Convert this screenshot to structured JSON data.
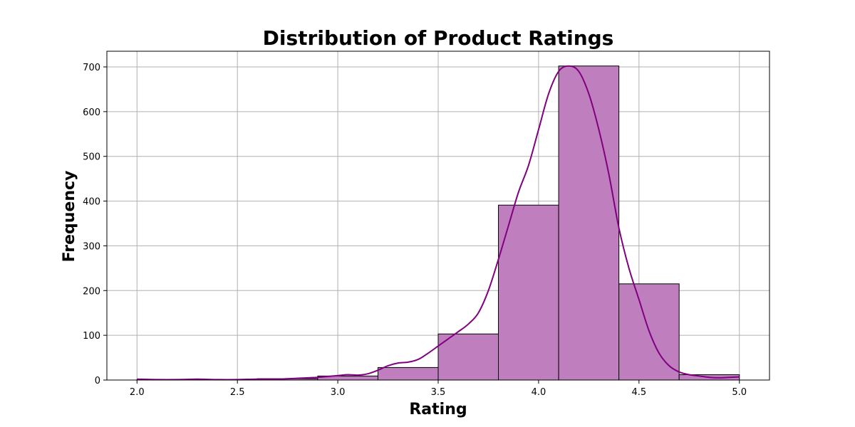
{
  "chart_data": {
    "type": "bar",
    "title": "Distribution of Product Ratings",
    "xlabel": "Rating",
    "ylabel": "Frequency",
    "xlim": [
      1.85,
      5.15
    ],
    "ylim": [
      0,
      735
    ],
    "xticks": [
      2.0,
      2.5,
      3.0,
      3.5,
      4.0,
      4.5,
      5.0
    ],
    "xtick_labels": [
      "2.0",
      "2.5",
      "3.0",
      "3.5",
      "4.0",
      "4.5",
      "5.0"
    ],
    "yticks": [
      0,
      100,
      200,
      300,
      400,
      500,
      600,
      700
    ],
    "ytick_labels": [
      "0",
      "100",
      "200",
      "300",
      "400",
      "500",
      "600",
      "700"
    ],
    "grid": true,
    "bin_edges": [
      2.0,
      2.3,
      2.6,
      2.9,
      3.2,
      3.5,
      3.8,
      4.1,
      4.4,
      4.7,
      5.0
    ],
    "values": [
      1,
      1,
      3,
      9,
      28,
      103,
      391,
      702,
      215,
      12
    ],
    "kde_curve": {
      "x": [
        2.0,
        2.1,
        2.2,
        2.3,
        2.4,
        2.5,
        2.6,
        2.7,
        2.8,
        2.9,
        3.0,
        3.05,
        3.1,
        3.15,
        3.2,
        3.25,
        3.3,
        3.35,
        3.4,
        3.45,
        3.5,
        3.55,
        3.6,
        3.65,
        3.7,
        3.75,
        3.8,
        3.85,
        3.9,
        3.95,
        4.0,
        4.05,
        4.1,
        4.15,
        4.2,
        4.25,
        4.3,
        4.35,
        4.4,
        4.45,
        4.5,
        4.55,
        4.6,
        4.65,
        4.7,
        4.75,
        4.8,
        4.85,
        4.9,
        4.95,
        5.0
      ],
      "y": [
        2,
        1,
        1,
        2,
        1,
        1,
        2,
        2,
        4,
        6,
        10,
        12,
        11,
        14,
        22,
        32,
        38,
        40,
        46,
        60,
        76,
        92,
        108,
        125,
        150,
        200,
        270,
        345,
        420,
        480,
        560,
        640,
        690,
        702,
        690,
        640,
        560,
        460,
        340,
        250,
        180,
        110,
        60,
        32,
        18,
        12,
        9,
        6,
        5,
        6,
        7
      ]
    },
    "colors": {
      "bar_fill": "#bf7fbf",
      "bar_edge": "#000000",
      "kde_line": "#800080",
      "grid": "#b0b0b0"
    }
  }
}
